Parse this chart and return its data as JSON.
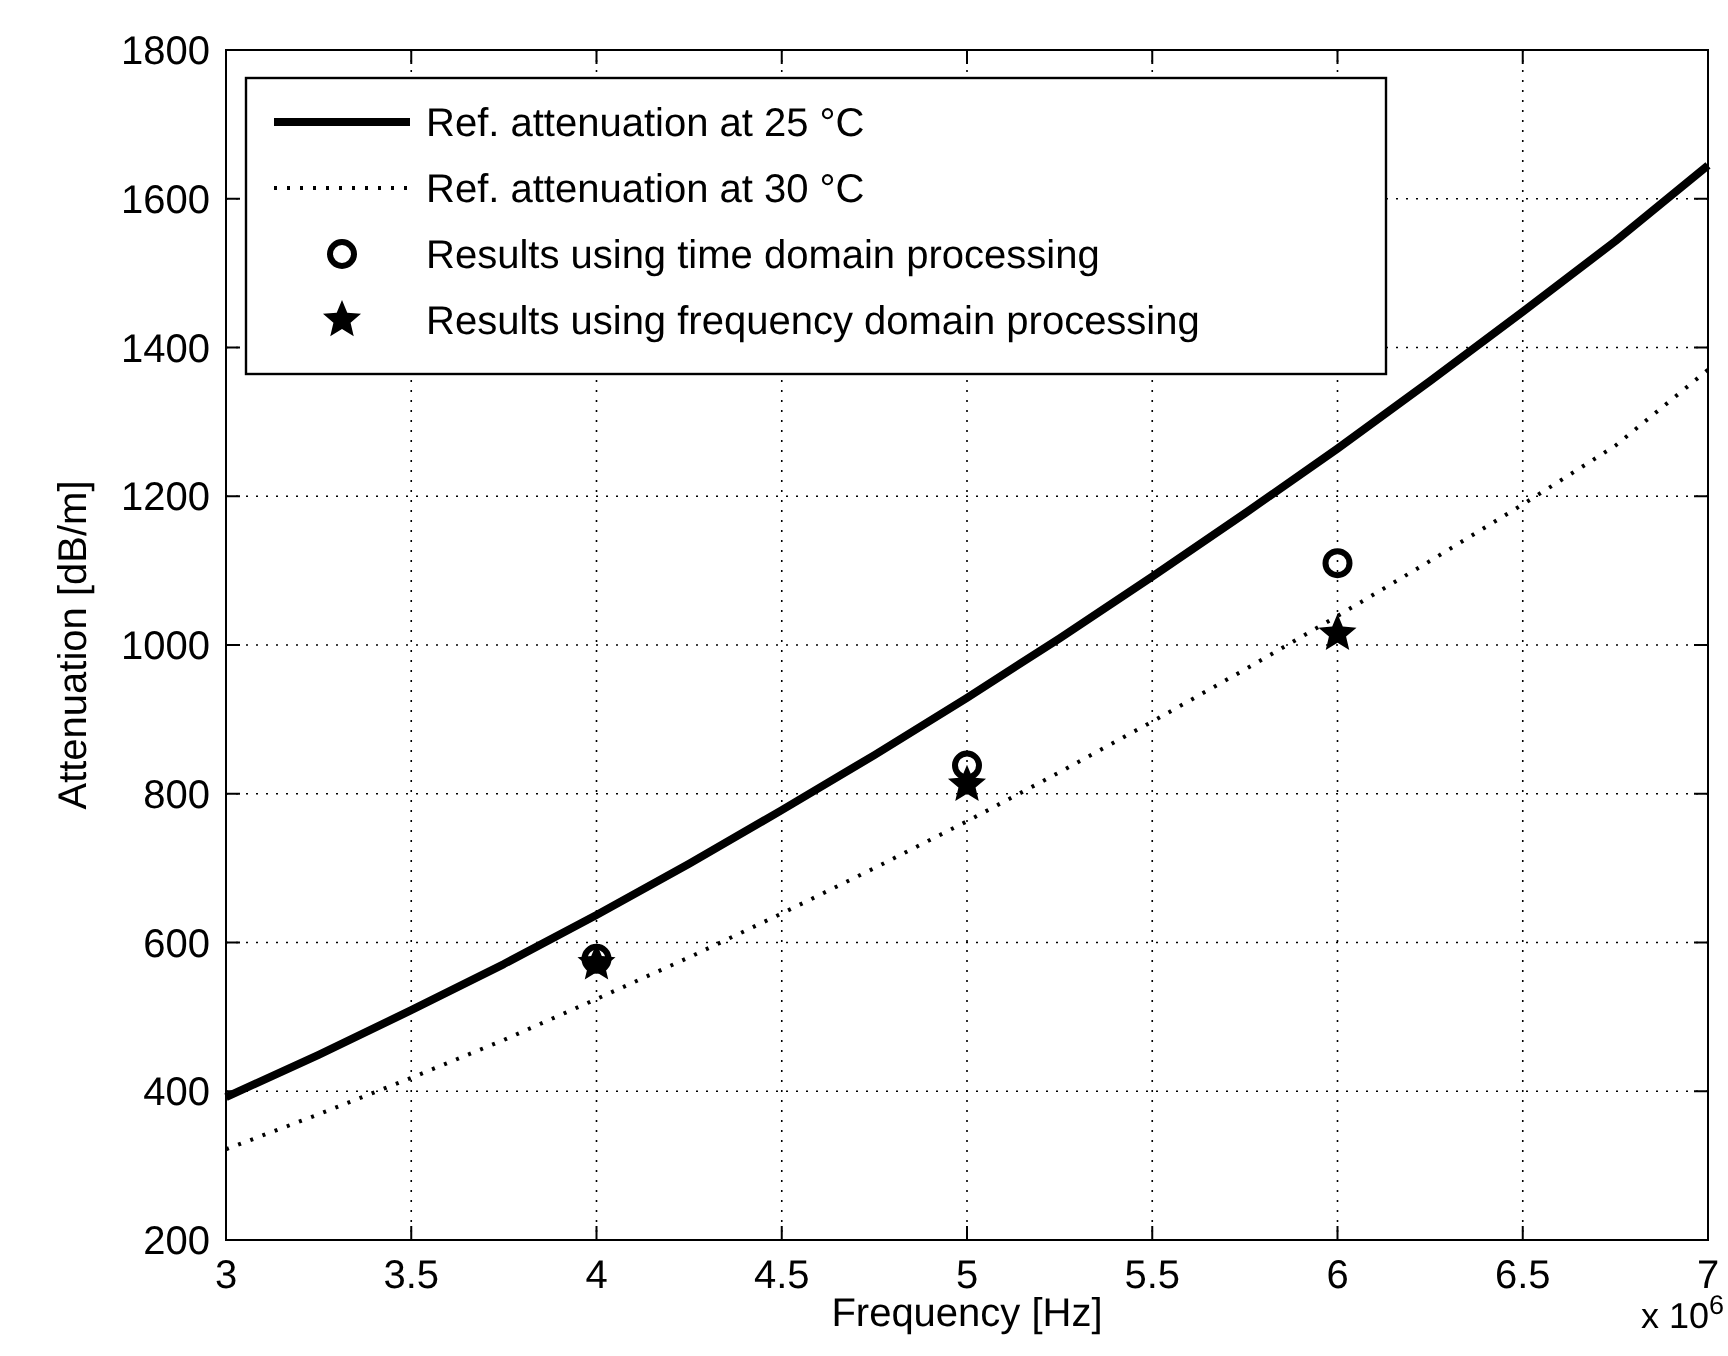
{
  "chart_data": {
    "type": "line",
    "xlabel": "Frequency [Hz]",
    "ylabel": "Attenuation [dB/m]",
    "xlim": [
      3,
      7
    ],
    "xticks": [
      3,
      3.5,
      4,
      4.5,
      5,
      5.5,
      6,
      6.5,
      7
    ],
    "ylim": [
      200,
      1800
    ],
    "yticks": [
      200,
      400,
      600,
      800,
      1000,
      1200,
      1400,
      1600,
      1800
    ],
    "grid": true,
    "legend": "top left",
    "annotations": [
      "x 10$^{6}$"
    ],
    "series": [
      {
        "name": "Ref. attenuation at 25 °C",
        "color": "#000000",
        "line_style": "solid",
        "marker": "none",
        "x": [
          3,
          3.25,
          3.5,
          3.75,
          4,
          4.25,
          4.5,
          4.75,
          5,
          5.25,
          5.5,
          5.75,
          6,
          6.25,
          6.5,
          6.75,
          7
        ],
        "values": [
          392,
          449,
          509,
          571,
          637,
          706,
          778,
          852,
          929,
          1009,
          1092,
          1177,
          1264,
          1355,
          1448,
          1543,
          1645
        ]
      },
      {
        "name": "Ref. attenuation at 30 °C",
        "color": "#000000",
        "line_style": "dotted",
        "marker": "none",
        "x": [
          3,
          3.25,
          3.5,
          3.75,
          4,
          4.25,
          4.5,
          4.75,
          5,
          5.25,
          5.5,
          5.75,
          6,
          6.25,
          6.5,
          6.75,
          7
        ],
        "values": [
          322,
          369,
          418,
          469,
          524,
          580,
          639,
          700,
          763,
          829,
          897,
          967,
          1039,
          1113,
          1189,
          1268,
          1370
        ]
      },
      {
        "name": "Results using time domain processing",
        "type": "scatter",
        "color": "#000000",
        "marker": "circle",
        "x": [
          4,
          5,
          6
        ],
        "values": [
          578,
          838,
          1110
        ]
      },
      {
        "name": "Results using frequency domain processing",
        "type": "scatter",
        "color": "#000000",
        "marker": "star",
        "x": [
          4,
          5,
          6
        ],
        "values": [
          572,
          812,
          1015
        ]
      }
    ]
  }
}
